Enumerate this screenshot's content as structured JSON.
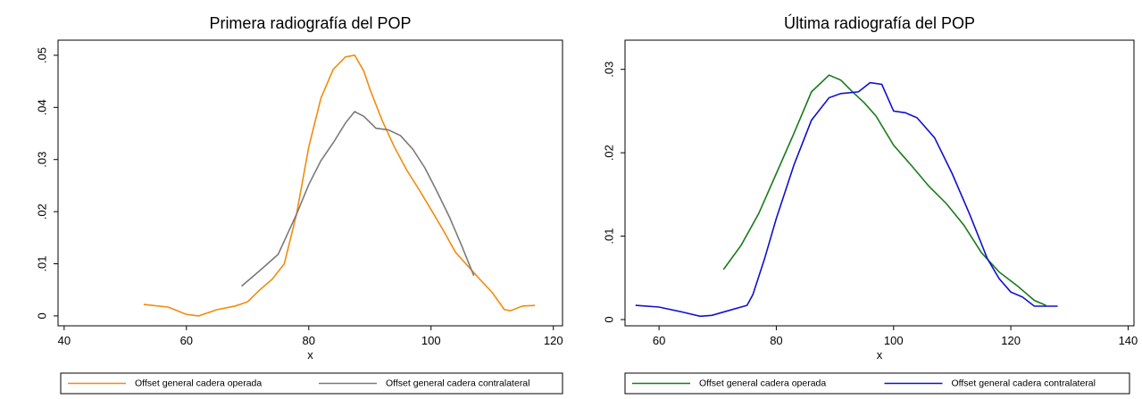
{
  "chart_data": [
    {
      "type": "line",
      "title": "Primera radiografía del POP",
      "x_label": "x",
      "xlim": [
        39,
        121.5
      ],
      "ylim": [
        -0.0019,
        0.0529
      ],
      "xticks": [
        40,
        60,
        80,
        100,
        120
      ],
      "yticks": [
        {
          "value": 0,
          "label": "0"
        },
        {
          "value": 0.01,
          "label": ".01"
        },
        {
          "value": 0.02,
          "label": ".02"
        },
        {
          "value": 0.03,
          "label": ".03"
        },
        {
          "value": 0.04,
          "label": ".04"
        },
        {
          "value": 0.05,
          "label": ".05"
        }
      ],
      "series": [
        {
          "name": "Offset general cadera operada",
          "color": "#f28b0c",
          "x": [
            53,
            57,
            60,
            62,
            65,
            68,
            70,
            72,
            74,
            76,
            78,
            80,
            82,
            84,
            86,
            87.5,
            89,
            90,
            92,
            94,
            96,
            98,
            100,
            102,
            104,
            106,
            108,
            110,
            112,
            113,
            115,
            117
          ],
          "values": [
            0.0022,
            0.0017,
            0.0003,
            0,
            0.0012,
            0.0019,
            0.0027,
            0.005,
            0.007,
            0.01,
            0.0195,
            0.0324,
            0.0418,
            0.0473,
            0.0497,
            0.05,
            0.047,
            0.0435,
            0.0375,
            0.0324,
            0.028,
            0.0243,
            0.0204,
            0.0164,
            0.0122,
            0.0096,
            0.007,
            0.0045,
            0.0012,
            0.001,
            0.0019,
            0.002
          ]
        },
        {
          "name": "Offset general cadera contralateral",
          "color": "#7a7a7a",
          "x": [
            69,
            72,
            75,
            78,
            80,
            82,
            84,
            86,
            87.5,
            89,
            91,
            93,
            95,
            97,
            99,
            101,
            103,
            105,
            107
          ],
          "values": [
            0.0057,
            0.0087,
            0.0118,
            0.0195,
            0.0252,
            0.0298,
            0.0332,
            0.037,
            0.0392,
            0.0383,
            0.036,
            0.0357,
            0.0346,
            0.032,
            0.0284,
            0.0238,
            0.019,
            0.0135,
            0.0077
          ]
        }
      ]
    },
    {
      "type": "line",
      "title": "Última radiografía del POP",
      "x_label": "x",
      "xlim": [
        54.2,
        141
      ],
      "ylim": [
        -0.00075,
        0.0335
      ],
      "xticks": [
        60,
        80,
        100,
        120,
        140
      ],
      "yticks": [
        {
          "value": 0,
          "label": "0"
        },
        {
          "value": 0.01,
          "label": ".01"
        },
        {
          "value": 0.02,
          "label": ".02"
        },
        {
          "value": 0.03,
          "label": ".03"
        }
      ],
      "series": [
        {
          "name": "Offset general cadera operada",
          "color": "#1a7a1a",
          "x": [
            71,
            74,
            77,
            80,
            83,
            86,
            89,
            91,
            93,
            95,
            97,
            100,
            103,
            106,
            109,
            112,
            115,
            118,
            121,
            124,
            126
          ],
          "values": [
            0.006,
            0.0089,
            0.0127,
            0.0175,
            0.0223,
            0.0273,
            0.0293,
            0.0287,
            0.0273,
            0.026,
            0.0244,
            0.0209,
            0.0185,
            0.016,
            0.0139,
            0.0113,
            0.008,
            0.0057,
            0.0041,
            0.0023,
            0.0017
          ]
        },
        {
          "name": "Offset general cadera contralateral",
          "color": "#1010d0",
          "x": [
            56,
            60,
            64,
            67,
            69,
            72,
            75,
            76,
            78,
            80,
            83,
            86,
            89,
            91,
            94,
            96,
            98,
            100,
            102,
            104,
            107,
            110,
            113,
            116,
            118,
            120,
            122,
            124,
            126,
            128
          ],
          "values": [
            0.0017,
            0.0015,
            0.0009,
            0.0004,
            0.0005,
            0.0011,
            0.0017,
            0.003,
            0.0073,
            0.0121,
            0.0185,
            0.0239,
            0.0266,
            0.0271,
            0.0273,
            0.0284,
            0.0282,
            0.025,
            0.0248,
            0.0242,
            0.0218,
            0.0175,
            0.0126,
            0.0073,
            0.0049,
            0.0033,
            0.0027,
            0.0016,
            0.0016,
            0.0016
          ]
        }
      ]
    }
  ]
}
